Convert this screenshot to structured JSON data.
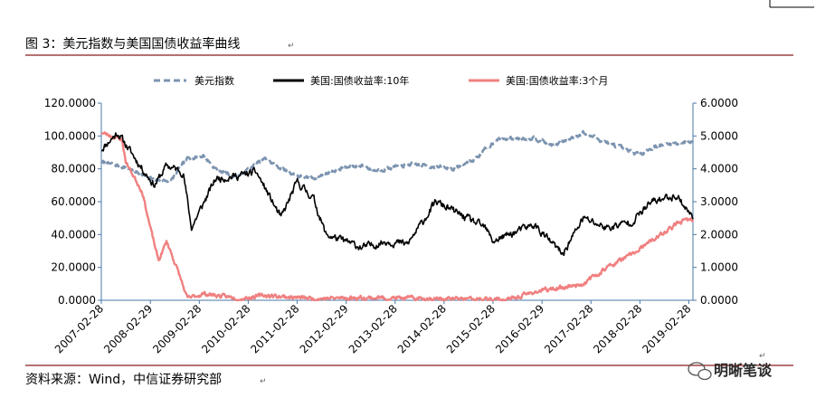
{
  "figure": {
    "title": "图 3：美元指数与美国国债收益率曲线",
    "source": "资料来源：Wind，中信证券研究部",
    "watermark": "明晰笔谈",
    "para_mark": "↵"
  },
  "colors": {
    "usd": "#7c94b0",
    "y10": "#000000",
    "m3": "#f08080",
    "axis": "#4a78a8",
    "rule": "#8b1a1a"
  },
  "chart_data": {
    "type": "line",
    "legend_position": "top",
    "grid": false,
    "x_tick_labels": [
      "2007-02-28",
      "2008-02-29",
      "2009-02-28",
      "2010-02-28",
      "2011-02-28",
      "2012-02-29",
      "2013-02-28",
      "2014-02-28",
      "2015-02-28",
      "2016-02-29",
      "2017-02-28",
      "2018-02-28",
      "2019-02-28"
    ],
    "x_range": [
      "2007-02-28",
      "2019-03-31"
    ],
    "y_left": {
      "range": [
        0,
        120
      ],
      "ticks": [
        "0.0000",
        "20.0000",
        "40.0000",
        "60.0000",
        "80.0000",
        "100.0000",
        "120.0000"
      ]
    },
    "y_right": {
      "range": [
        0,
        6
      ],
      "ticks": [
        "0.0000",
        "1.0000",
        "2.0000",
        "3.0000",
        "4.0000",
        "5.0000",
        "6.0000"
      ]
    },
    "series": [
      {
        "name": "美元指数",
        "axis": "left",
        "style": "dashed",
        "points": [
          [
            "2007-02-28",
            84
          ],
          [
            "2007-08-31",
            81
          ],
          [
            "2008-03-31",
            73
          ],
          [
            "2008-07-31",
            73
          ],
          [
            "2008-11-30",
            86
          ],
          [
            "2009-03-31",
            88
          ],
          [
            "2009-06-30",
            80
          ],
          [
            "2009-11-30",
            75
          ],
          [
            "2010-06-30",
            86
          ],
          [
            "2010-11-30",
            79
          ],
          [
            "2011-04-30",
            74
          ],
          [
            "2011-07-31",
            75
          ],
          [
            "2011-12-31",
            80
          ],
          [
            "2012-06-30",
            82
          ],
          [
            "2012-09-30",
            79
          ],
          [
            "2013-06-30",
            83
          ],
          [
            "2014-04-30",
            80
          ],
          [
            "2014-09-30",
            85
          ],
          [
            "2015-03-31",
            98
          ],
          [
            "2015-12-31",
            99
          ],
          [
            "2016-05-31",
            94
          ],
          [
            "2016-12-31",
            102
          ],
          [
            "2017-06-30",
            96
          ],
          [
            "2017-12-31",
            90
          ],
          [
            "2018-02-28",
            89
          ],
          [
            "2018-06-30",
            94
          ],
          [
            "2019-03-31",
            97
          ]
        ]
      },
      {
        "name": "美国:国债收益率:10年",
        "axis": "right",
        "style": "solid",
        "points": [
          [
            "2007-02-28",
            4.6
          ],
          [
            "2007-06-30",
            5.1
          ],
          [
            "2007-12-31",
            4.0
          ],
          [
            "2008-03-31",
            3.5
          ],
          [
            "2008-06-30",
            4.1
          ],
          [
            "2008-10-31",
            3.9
          ],
          [
            "2008-12-31",
            2.2
          ],
          [
            "2009-06-30",
            3.7
          ],
          [
            "2009-12-31",
            3.8
          ],
          [
            "2010-04-30",
            3.9
          ],
          [
            "2010-10-31",
            2.5
          ],
          [
            "2011-02-28",
            3.6
          ],
          [
            "2011-06-30",
            3.1
          ],
          [
            "2011-09-30",
            2.0
          ],
          [
            "2012-06-30",
            1.6
          ],
          [
            "2012-12-31",
            1.8
          ],
          [
            "2013-05-31",
            1.7
          ],
          [
            "2013-12-31",
            3.0
          ],
          [
            "2014-06-30",
            2.6
          ],
          [
            "2014-12-31",
            2.2
          ],
          [
            "2015-02-28",
            1.8
          ],
          [
            "2015-12-31",
            2.3
          ],
          [
            "2016-07-31",
            1.4
          ],
          [
            "2016-12-31",
            2.5
          ],
          [
            "2017-06-30",
            2.2
          ],
          [
            "2017-12-31",
            2.4
          ],
          [
            "2018-05-31",
            3.0
          ],
          [
            "2018-11-30",
            3.2
          ],
          [
            "2019-03-31",
            2.5
          ]
        ]
      },
      {
        "name": "美国:国债收益率:3个月",
        "axis": "right",
        "style": "solid",
        "points": [
          [
            "2007-02-28",
            5.1
          ],
          [
            "2007-07-31",
            4.9
          ],
          [
            "2007-08-31",
            4.2
          ],
          [
            "2007-12-31",
            3.3
          ],
          [
            "2008-02-29",
            2.2
          ],
          [
            "2008-04-30",
            1.2
          ],
          [
            "2008-06-30",
            1.8
          ],
          [
            "2008-09-30",
            0.8
          ],
          [
            "2008-11-30",
            0.05
          ],
          [
            "2009-03-31",
            0.2
          ],
          [
            "2009-12-31",
            0.05
          ],
          [
            "2010-06-30",
            0.15
          ],
          [
            "2011-06-30",
            0.05
          ],
          [
            "2012-06-30",
            0.08
          ],
          [
            "2013-12-31",
            0.05
          ],
          [
            "2015-06-30",
            0.02
          ],
          [
            "2015-12-31",
            0.25
          ],
          [
            "2016-12-31",
            0.5
          ],
          [
            "2017-06-30",
            1.0
          ],
          [
            "2017-12-31",
            1.4
          ],
          [
            "2018-06-30",
            1.9
          ],
          [
            "2018-12-31",
            2.4
          ],
          [
            "2019-03-31",
            2.45
          ]
        ]
      }
    ]
  }
}
